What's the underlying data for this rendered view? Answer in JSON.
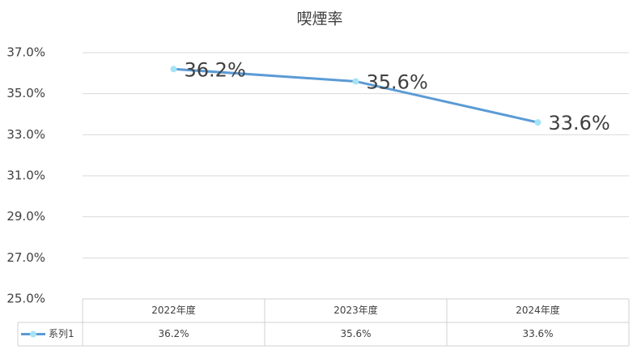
{
  "chart_data": {
    "type": "line",
    "title": "喫煙率",
    "categories": [
      "2022年度",
      "2023年度",
      "2024年度"
    ],
    "series": [
      {
        "name": "系列1",
        "color": "#5b9bd5",
        "marker_color": "#a6e3f5",
        "values": [
          36.2,
          35.6,
          33.6
        ],
        "value_labels": [
          "36.2%",
          "35.6%",
          "33.6%"
        ]
      }
    ],
    "ylim": [
      25,
      37
    ],
    "yticks": [
      {
        "value": 25,
        "label": "25.0%"
      },
      {
        "value": 27,
        "label": "27.0%"
      },
      {
        "value": 29,
        "label": "29.0%"
      },
      {
        "value": 31,
        "label": "31.0%"
      },
      {
        "value": 33,
        "label": "33.0%"
      },
      {
        "value": 35,
        "label": "35.0%"
      },
      {
        "value": 37,
        "label": "37.0%"
      }
    ],
    "grid": true,
    "data_table": true
  }
}
